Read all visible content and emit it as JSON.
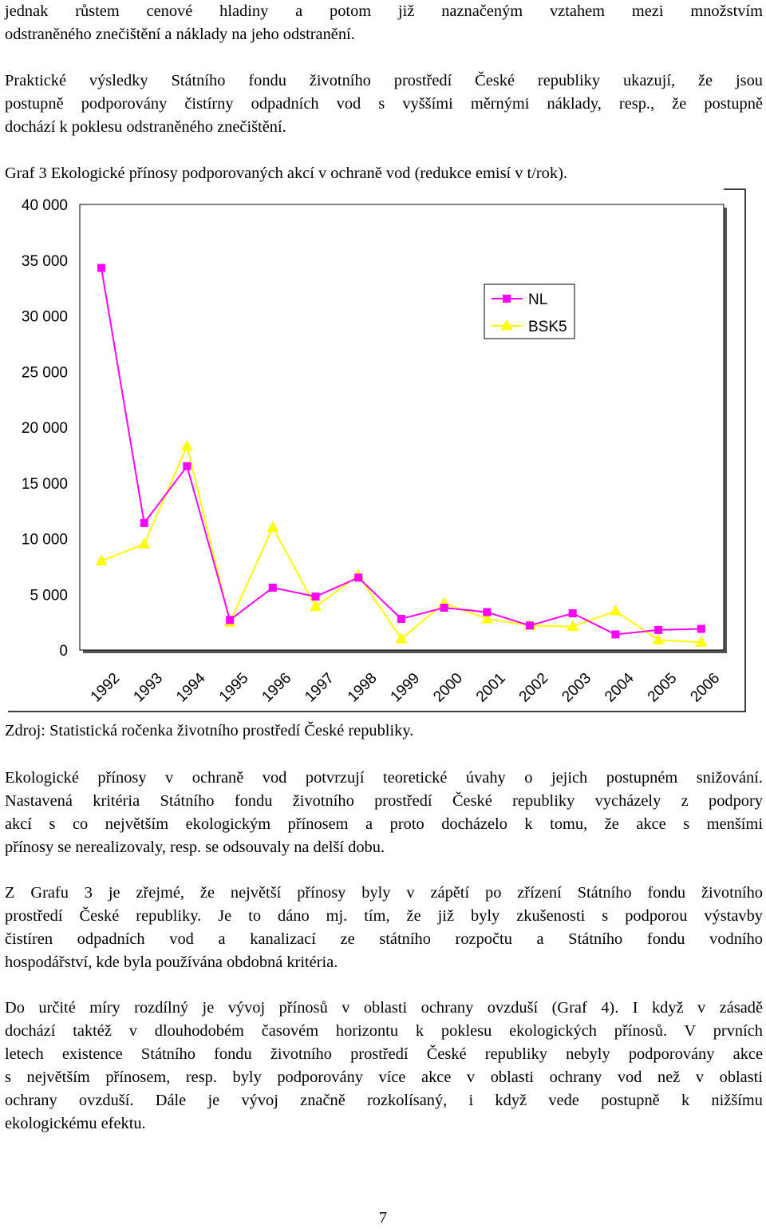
{
  "intro": {
    "lines": [
      "jednak růstem cenové hladiny a potom již naznačeným vztahem mezi množstvím",
      "odstraněného znečištění a náklady na jeho odstranění."
    ]
  },
  "results": {
    "lines": [
      "Praktické   výsledky Státního fondu životního prostředí České republiky ukazují, že jsou",
      "postupně podporovány čistírny odpadních vod s vyššími měrnými náklady, resp., že postupně",
      "dochází k poklesu odstraněného znečištění."
    ]
  },
  "figure_caption": "Graf 3 Ekologické přínosy podporovaných akcí v ochraně vod (redukce emisí v t/rok).",
  "chart_data": {
    "type": "line",
    "x": [
      "1992",
      "1993",
      "1994",
      "1995",
      "1996",
      "1997",
      "1998",
      "1999",
      "2000",
      "2001",
      "2002",
      "2003",
      "2004",
      "2005",
      "2006"
    ],
    "ylim": [
      0,
      40000
    ],
    "yticks": [
      "0",
      "5 000",
      "10 000",
      "15 000",
      "20 000",
      "25 000",
      "30 000",
      "35 000",
      "40 000"
    ],
    "legend_position": "top-right",
    "grid": false,
    "series": [
      {
        "name": "NL",
        "color": "#ff00ff",
        "marker": "square",
        "values": [
          34300,
          11400,
          16500,
          2700,
          5600,
          4800,
          6500,
          2800,
          3800,
          3400,
          2200,
          3300,
          1400,
          1800,
          1900
        ]
      },
      {
        "name": "BSK5",
        "color": "#ffff00",
        "marker": "triangle",
        "values": [
          8000,
          9500,
          18300,
          2500,
          11000,
          3900,
          6700,
          1000,
          4200,
          2800,
          2200,
          2100,
          3500,
          900,
          700
        ]
      }
    ]
  },
  "source_note": "Zdroj: Statistická ročenka životního prostředí České republiky.",
  "paragraph1": {
    "lines": [
      "Ekologické přínosy v ochraně vod potvrzují teoretické úvahy o jejich postupném snižování.",
      "Nastavená kritéria Státního fondu životního prostředí České republiky vycházely  z podpory",
      "akcí s co největším ekologickým přínosem a proto docházelo k tomu, že akce s menšími",
      "přínosy se nerealizovaly, resp. se odsouvaly na delší dobu."
    ]
  },
  "paragraph2": {
    "lines": [
      "Z Grafu 3 je zřejmé, že největší přínosy byly v zápětí po zřízení Státního fondu životního",
      "prostředí České republiky. Je to dáno mj. tím, že již byly zkušenosti s podporou výstavby",
      "čistíren odpadních vod a kanalizací ze státního rozpočtu a Státního fondu vodního",
      "hospodářství, kde byla používána obdobná kritéria."
    ]
  },
  "paragraph3": {
    "lines": [
      "Do určité míry rozdílný je vývoj přínosů v oblasti ochrany ovzduší (Graf 4).  I když v zásadě",
      "dochází taktéž v dlouhodobém časovém horizontu k poklesu ekologických přínosů. V prvních",
      "letech existence Státního fondu životního prostředí České republiky nebyly podporovány akce",
      "s největším přínosem, resp. byly podporovány více akce v oblasti ochrany vod než v oblasti",
      "ochrany ovzduší. Dále je vývoj značně rozkolísaný, i když vede postupně k nižšímu",
      "ekologickému efektu."
    ]
  },
  "page_number": "7"
}
